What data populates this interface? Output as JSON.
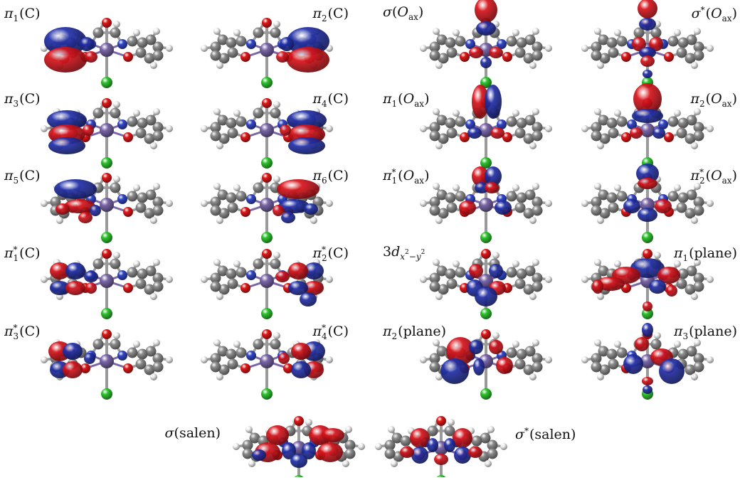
{
  "figure": {
    "panels": [
      {
        "id": "p1",
        "label": {
          "g": "π",
          "sub": "1",
          "sup": "",
          "arg": "C",
          "argIt": false
        },
        "lobes": "pi-left"
      },
      {
        "id": "p2",
        "label": {
          "g": "π",
          "sub": "2",
          "sup": "",
          "arg": "C",
          "argIt": false
        },
        "lobes": "pi-right"
      },
      {
        "id": "p3",
        "label": {
          "g": "σ",
          "sub": "",
          "sup": "",
          "arg": "O",
          "argSub": "ax",
          "argIt": true
        },
        "lobes": "sigma-oax"
      },
      {
        "id": "p4",
        "label": {
          "g": "σ",
          "sub": "",
          "sup": "*",
          "arg": "O",
          "argSub": "ax",
          "argIt": true
        },
        "lobes": "sigma-star-oax"
      },
      {
        "id": "p5",
        "label": {
          "g": "π",
          "sub": "3",
          "sup": "",
          "arg": "C",
          "argIt": false
        },
        "lobes": "pi3"
      },
      {
        "id": "p6",
        "label": {
          "g": "π",
          "sub": "4",
          "sup": "",
          "arg": "C",
          "argIt": false
        },
        "lobes": "pi4"
      },
      {
        "id": "p7",
        "label": {
          "g": "π",
          "sub": "1",
          "sup": "",
          "arg": "O",
          "argSub": "ax",
          "argIt": true
        },
        "lobes": "pi1-oax"
      },
      {
        "id": "p8",
        "label": {
          "g": "π",
          "sub": "2",
          "sup": "",
          "arg": "O",
          "argSub": "ax",
          "argIt": true
        },
        "lobes": "pi2-oax"
      },
      {
        "id": "p9",
        "label": {
          "g": "π",
          "sub": "5",
          "sup": "",
          "arg": "C",
          "argIt": false
        },
        "lobes": "pi5"
      },
      {
        "id": "p10",
        "label": {
          "g": "π",
          "sub": "6",
          "sup": "",
          "arg": "C",
          "argIt": false
        },
        "lobes": "pi6"
      },
      {
        "id": "p11",
        "label": {
          "g": "π",
          "sub": "1",
          "sup": "*",
          "arg": "O",
          "argSub": "ax",
          "argIt": true
        },
        "lobes": "pi1s-oax"
      },
      {
        "id": "p12",
        "label": {
          "g": "π",
          "sub": "2",
          "sup": "*",
          "arg": "O",
          "argSub": "ax",
          "argIt": true
        },
        "lobes": "pi2s-oax"
      },
      {
        "id": "p13",
        "label": {
          "g": "π",
          "sub": "1",
          "sup": "*",
          "arg": "C",
          "argIt": false
        },
        "lobes": "pi1s"
      },
      {
        "id": "p14",
        "label": {
          "g": "π",
          "sub": "2",
          "sup": "*",
          "arg": "C",
          "argIt": false
        },
        "lobes": "pi2s"
      },
      {
        "id": "p15",
        "label": {
          "special": "3d"
        },
        "lobes": "d-x2y2"
      },
      {
        "id": "p16",
        "label": {
          "g": "π",
          "sub": "1",
          "sup": "",
          "arg": "plane",
          "argIt": false
        },
        "lobes": "pi1-plane"
      },
      {
        "id": "p17",
        "label": {
          "g": "π",
          "sub": "3",
          "sup": "*",
          "arg": "C",
          "argIt": false
        },
        "lobes": "pi3s"
      },
      {
        "id": "p18",
        "label": {
          "g": "π",
          "sub": "4",
          "sup": "*",
          "arg": "C",
          "argIt": false
        },
        "lobes": "pi4s"
      },
      {
        "id": "p19",
        "label": {
          "g": "π",
          "sub": "2",
          "sup": "",
          "arg": "plane",
          "argIt": false
        },
        "lobes": "pi2-plane"
      },
      {
        "id": "p20",
        "label": {
          "g": "π",
          "sub": "3",
          "sup": "",
          "arg": "plane",
          "argIt": false
        },
        "lobes": "pi3-plane"
      },
      {
        "id": "p21",
        "label": {
          "g": "σ",
          "sub": "",
          "sup": "",
          "arg": "salen",
          "argIt": false
        },
        "lobes": "sigma-salen"
      },
      {
        "id": "p22",
        "label": {
          "g": "σ",
          "sub": "",
          "sup": "*",
          "arg": "salen",
          "argIt": false
        },
        "lobes": "sigma-star-salen"
      }
    ],
    "colors": {
      "positive_lobe": "#d8141c",
      "negative_lobe": "#2230a8",
      "carbon": "#8c8c8c",
      "hydrogen": "#f2f2f2",
      "nitrogen": "#3347c8",
      "oxygen": "#e01818",
      "metal": "#7a66a8",
      "chlorine": "#2fc42f",
      "bond": "#9a9a9a"
    },
    "d_orbital": {
      "prefix": "3",
      "letter": "d",
      "sub1": "x",
      "sup1": "2",
      "mid": "−",
      "sub2": "y",
      "sup2": "2"
    }
  }
}
